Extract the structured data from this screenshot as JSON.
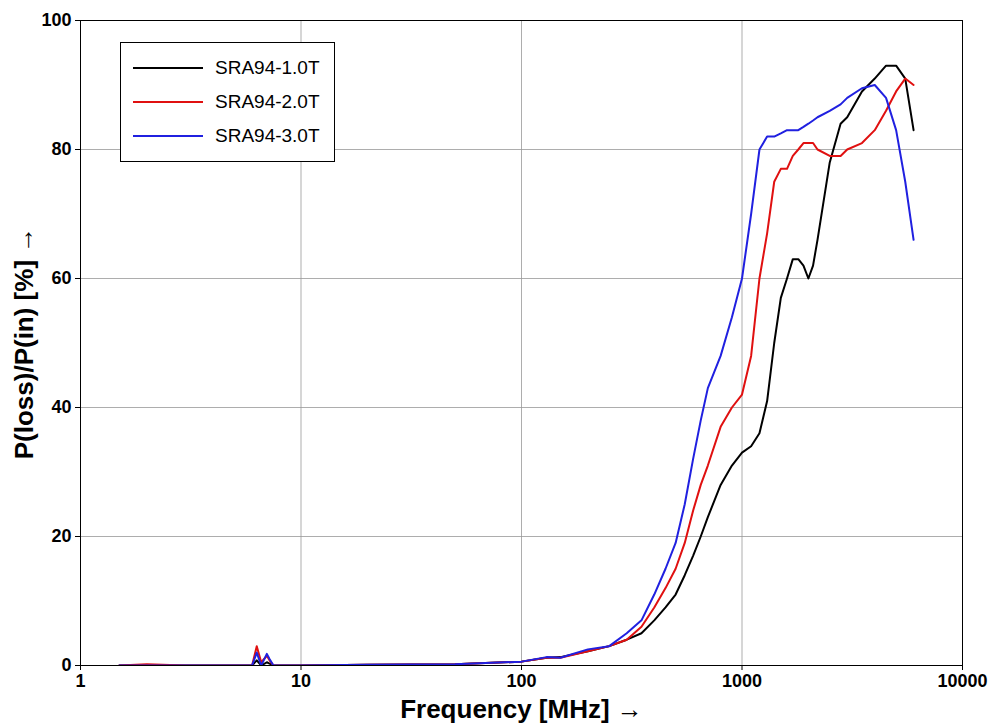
{
  "chart_data": {
    "type": "line",
    "x_label": "Frequency [MHz]",
    "y_label": "P(loss)/P(in) [%]",
    "log": "x",
    "grid": true,
    "legend": "top-left",
    "xlim": [
      1,
      10000
    ],
    "xticks": [
      1,
      10,
      100,
      1000,
      10000
    ],
    "ylim": [
      0,
      100
    ],
    "yticks": [
      0,
      20,
      40,
      60,
      80,
      100
    ],
    "x": [
      1.5,
      2,
      3,
      5,
      6,
      6.3,
      6.6,
      7,
      7.2,
      7.5,
      8,
      10,
      20,
      50,
      100,
      130,
      150,
      200,
      250,
      300,
      350,
      400,
      450,
      500,
      550,
      600,
      650,
      700,
      800,
      900,
      1000,
      1100,
      1200,
      1300,
      1400,
      1500,
      1600,
      1700,
      1800,
      1900,
      2000,
      2100,
      2200,
      2500,
      2800,
      3000,
      3500,
      4000,
      4500,
      5000,
      5500,
      6000
    ],
    "series": [
      {
        "name": "SRA94-1.0T",
        "color": "#000000",
        "values": [
          0,
          0,
          0,
          0,
          0,
          0.8,
          0,
          0.5,
          0.3,
          0,
          0,
          0,
          0.1,
          0.2,
          0.6,
          1.2,
          1.3,
          2.2,
          3,
          4,
          5,
          7,
          9,
          11,
          14,
          17,
          20,
          23,
          28,
          31,
          33,
          34,
          36,
          41,
          50,
          57,
          60,
          63,
          63,
          62,
          60,
          62,
          66,
          78,
          84,
          85,
          89,
          91,
          93,
          93,
          91,
          83
        ]
      },
      {
        "name": "SRA94-2.0T",
        "color": "#e01010",
        "values": [
          0,
          0.2,
          0,
          0,
          0,
          3,
          0.5,
          1.5,
          0.8,
          0,
          0,
          0,
          0.1,
          0.2,
          0.6,
          1.2,
          1.2,
          2.2,
          3,
          4,
          6,
          9,
          12,
          15,
          19,
          24,
          28,
          31,
          37,
          40,
          42,
          48,
          60,
          67,
          75,
          77,
          77,
          79,
          80,
          81,
          81,
          81,
          80,
          79,
          79,
          80,
          81,
          83,
          86,
          89,
          91,
          90
        ]
      },
      {
        "name": "SRA94-3.0T",
        "color": "#2020e0",
        "values": [
          0,
          0,
          0,
          0,
          0,
          2,
          0,
          1.8,
          1,
          0,
          0,
          0,
          0.1,
          0.2,
          0.6,
          1.3,
          1.2,
          2.5,
          3,
          5,
          7,
          11,
          15,
          19,
          25,
          32,
          38,
          43,
          48,
          54,
          60,
          70,
          80,
          82,
          82,
          82.5,
          83,
          83,
          83,
          83.5,
          84,
          84.5,
          85,
          86,
          87,
          88,
          89.5,
          90,
          88,
          83,
          75,
          66
        ]
      }
    ]
  }
}
